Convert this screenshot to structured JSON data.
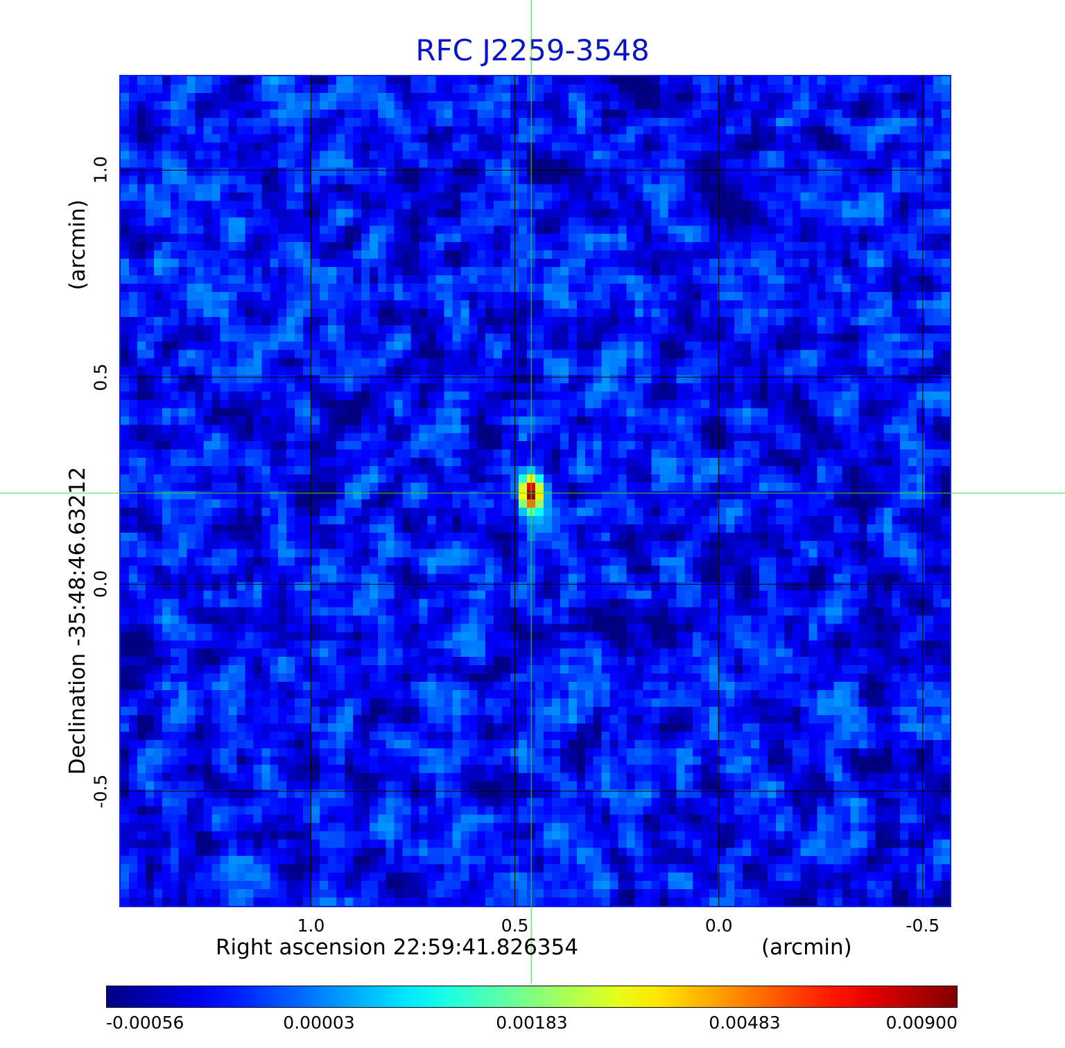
{
  "chart_data": {
    "type": "heatmap",
    "title": "RFC J2259-3548",
    "xlabel": "Right ascension  22:59:41.826354",
    "xunit": "(arcmin)",
    "ylabel": "Declination  -35:48:46.63212",
    "yunit": "(arcmin)",
    "xlim": [
      1.47,
      -0.57
    ],
    "ylim": [
      -0.78,
      1.23
    ],
    "x_ticks": [
      "1.0",
      "0.5",
      "0.0",
      "-0.5"
    ],
    "y_ticks": [
      "1.0",
      "0.5",
      "0.0",
      "-0.5"
    ],
    "grid": true,
    "colormap": "jet",
    "colorbar": {
      "min": -0.00056,
      "max": 0.009,
      "ticks": [
        "-0.00056",
        "0.00003",
        "0.00183",
        "0.00483",
        "0.00900"
      ]
    },
    "peak": {
      "x": 0.46,
      "y": 0.22,
      "value": 0.009
    },
    "crosshair": {
      "x": 0.46,
      "y": 0.22
    },
    "crosshair_color": "#33dd33",
    "title_color": "#0a14c8",
    "frame_color": "#0a1ee6"
  }
}
